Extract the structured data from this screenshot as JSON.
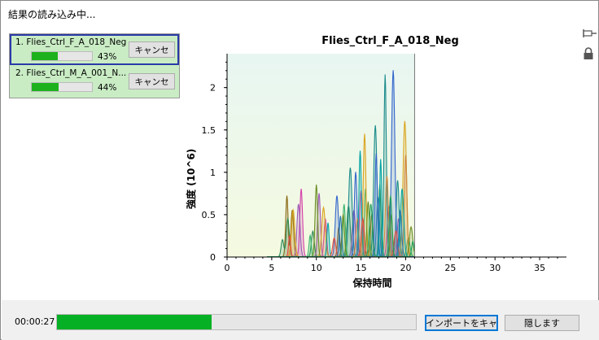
{
  "window": {
    "title": "結果の読み込み中..."
  },
  "jobs": [
    {
      "label": "1. Flies_Ctrl_F_A_018_Neg",
      "progress": 0.43,
      "percent_text": "43%",
      "cancel_label": "キャンセ"
    },
    {
      "label": "2. Flies_Ctrl_M_A_001_N...",
      "progress": 0.44,
      "percent_text": "44%",
      "cancel_label": "キャンセ"
    }
  ],
  "footer": {
    "elapsed": "00:00:27",
    "overall_progress": 0.43,
    "import_button": "インポートをキャ",
    "hide_button": "隠します"
  },
  "icons": {
    "pin": "pin-icon",
    "lock": "lock-icon"
  },
  "chart_data": {
    "type": "line",
    "title": "Flies_Ctrl_F_A_018_Neg",
    "xlabel": "保持時間",
    "ylabel": "強度 (10^6)",
    "xlim": [
      0,
      38
    ],
    "ylim": [
      0,
      2.4
    ],
    "x_ticks": [
      0,
      5,
      10,
      15,
      20,
      25,
      30,
      35
    ],
    "y_ticks": [
      0,
      0.5,
      1,
      1.5,
      2
    ],
    "y_tick_labels": [
      "0",
      "0.5",
      "1",
      "1.5",
      "2"
    ],
    "shaded_range": [
      0,
      21
    ],
    "grid": false,
    "series": [
      {
        "color": "#8b6914",
        "peaks": [
          [
            6.7,
            0.72
          ],
          [
            7.3,
            0.55
          ],
          [
            12.5,
            0.35
          ],
          [
            16.2,
            0.5
          ]
        ]
      },
      {
        "color": "#2e8b57",
        "peaks": [
          [
            6.2,
            0.2
          ],
          [
            6.8,
            0.45
          ],
          [
            9.6,
            0.3
          ],
          [
            13.6,
            0.6
          ],
          [
            17.1,
            0.85
          ]
        ]
      },
      {
        "color": "#d43fa8",
        "peaks": [
          [
            8.3,
            0.8
          ],
          [
            11.0,
            0.45
          ],
          [
            15.0,
            0.78
          ],
          [
            18.1,
            0.6
          ]
        ]
      },
      {
        "color": "#9b59b6",
        "peaks": [
          [
            8.0,
            0.62
          ],
          [
            10.3,
            0.75
          ],
          [
            14.2,
            0.55
          ],
          [
            19.2,
            0.45
          ]
        ]
      },
      {
        "color": "#1b8b8b",
        "peaks": [
          [
            13.8,
            1.05
          ],
          [
            16.6,
            1.55
          ],
          [
            17.7,
            2.15
          ],
          [
            19.1,
            0.9
          ]
        ]
      },
      {
        "color": "#3366cc",
        "peaks": [
          [
            12.3,
            0.72
          ],
          [
            14.4,
            1.0
          ],
          [
            16.7,
            1.22
          ],
          [
            18.6,
            2.2
          ]
        ]
      },
      {
        "color": "#3cb371",
        "peaks": [
          [
            9.3,
            0.25
          ],
          [
            13.1,
            0.62
          ],
          [
            15.5,
            0.8
          ],
          [
            20.3,
            0.22
          ]
        ]
      },
      {
        "color": "#daa520",
        "peaks": [
          [
            7.4,
            0.55
          ],
          [
            10.8,
            0.58
          ],
          [
            15.4,
            1.45
          ],
          [
            19.9,
            1.6
          ]
        ]
      },
      {
        "color": "#cd853f",
        "peaks": [
          [
            14.6,
            0.45
          ],
          [
            17.9,
            0.95
          ],
          [
            20.0,
            1.2
          ]
        ]
      },
      {
        "color": "#6b8e23",
        "peaks": [
          [
            10.0,
            0.85
          ],
          [
            13.0,
            0.5
          ],
          [
            15.8,
            0.65
          ],
          [
            18.4,
            0.5
          ],
          [
            20.6,
            0.35
          ]
        ]
      },
      {
        "color": "#00a3a3",
        "peaks": [
          [
            11.3,
            0.4
          ],
          [
            14.9,
            1.25
          ],
          [
            17.2,
            1.15
          ],
          [
            19.6,
            0.8
          ]
        ]
      },
      {
        "color": "#e74c3c",
        "peaks": [
          [
            7.0,
            0.25
          ],
          [
            12.0,
            0.22
          ],
          [
            15.2,
            0.45
          ],
          [
            18.9,
            0.3
          ]
        ]
      },
      {
        "color": "#2a7ab0",
        "peaks": [
          [
            12.7,
            0.48
          ],
          [
            16.9,
            0.7
          ],
          [
            19.4,
            0.55
          ]
        ]
      },
      {
        "color": "#20a060",
        "peaks": [
          [
            16.1,
            0.62
          ],
          [
            18.3,
            0.72
          ],
          [
            20.8,
            0.18
          ]
        ]
      }
    ]
  }
}
